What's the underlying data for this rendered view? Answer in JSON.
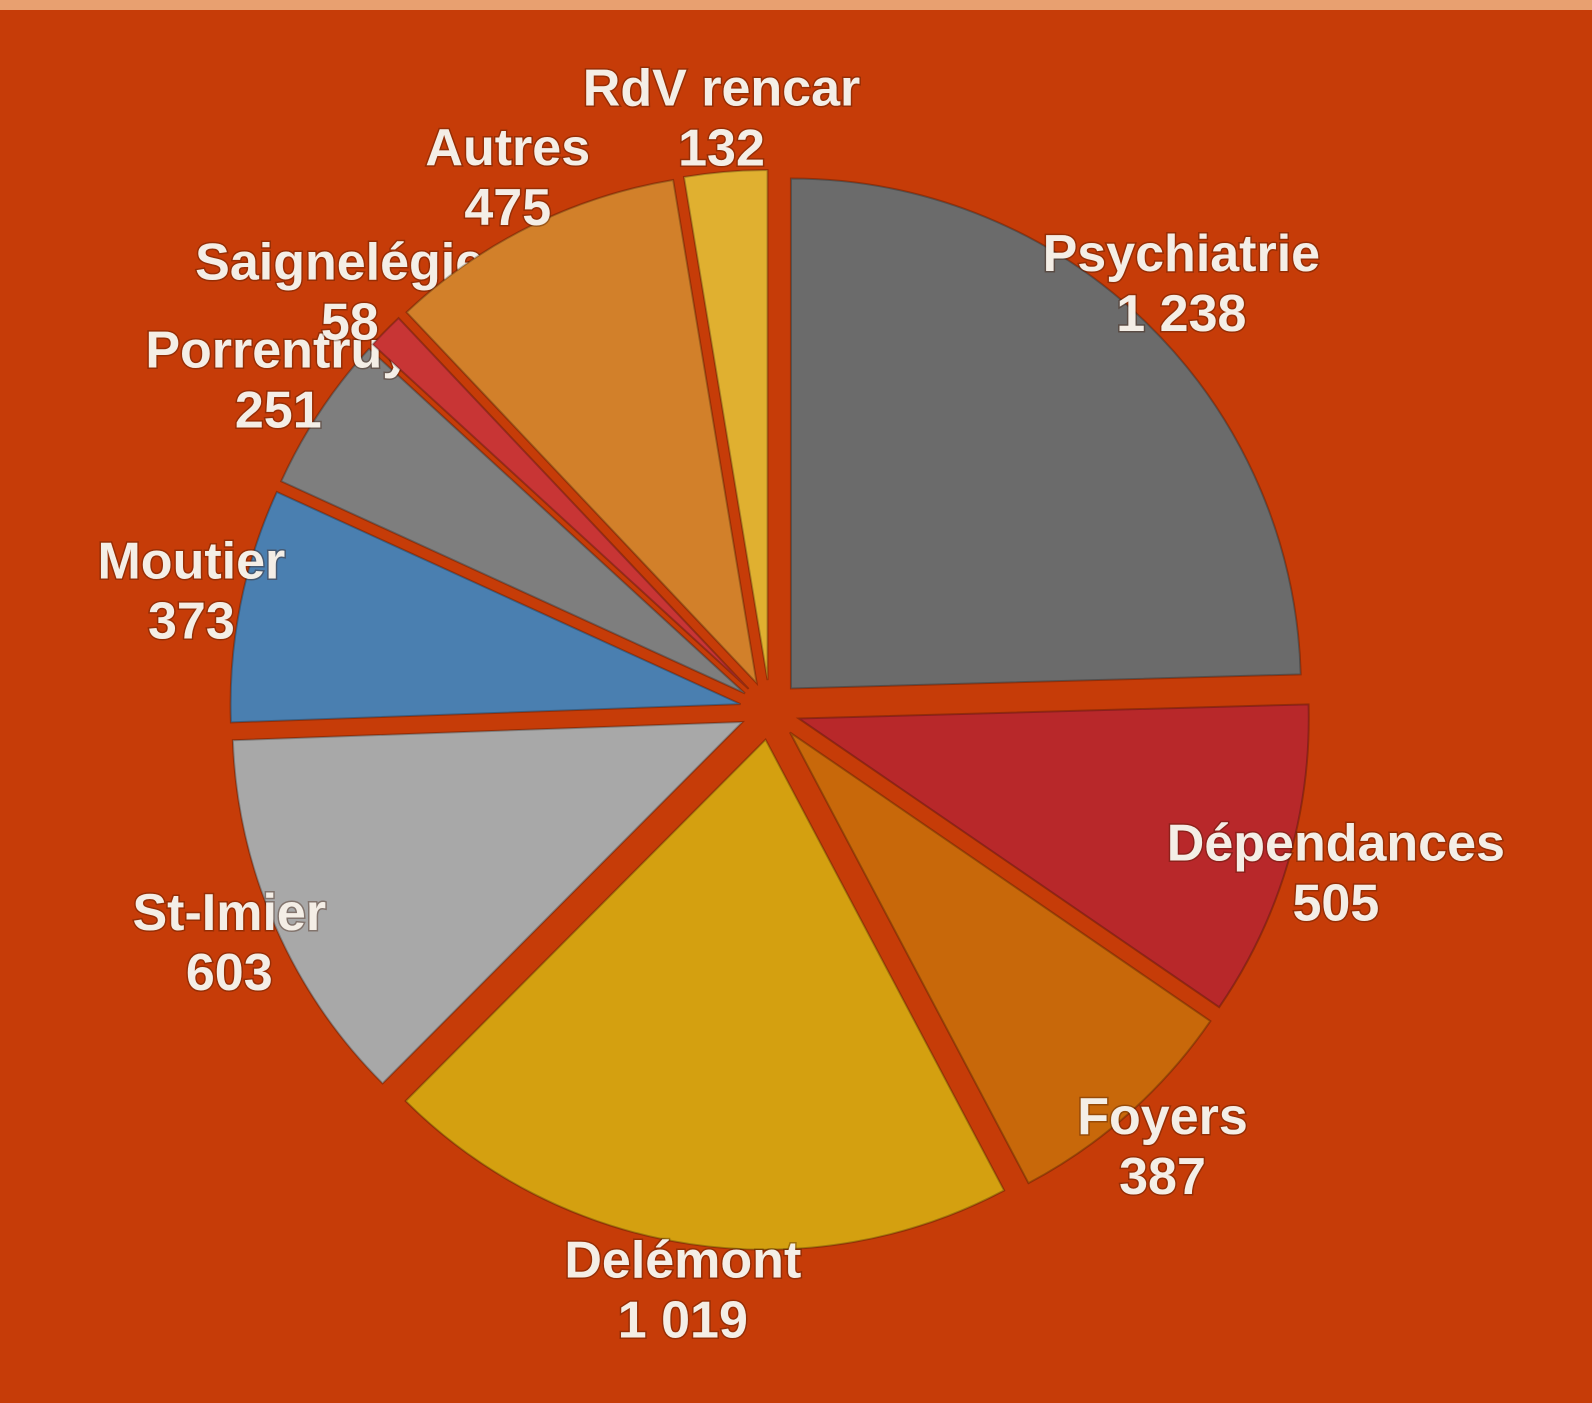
{
  "chart_data": {
    "type": "pie",
    "categories": [
      "Psychiatrie",
      "Dépendances",
      "Foyers",
      "Delémont",
      "St-Imier",
      "Moutier",
      "Porrentruy",
      "Saignelégier",
      "Autres",
      "RdV rencar"
    ],
    "values": [
      1238,
      505,
      387,
      1019,
      603,
      373,
      251,
      58,
      475,
      132
    ],
    "value_labels": [
      "1 238",
      "505",
      "387",
      "1 019",
      "603",
      "373",
      "251",
      "58",
      "475",
      "132"
    ],
    "colors": [
      "#6b6b6b",
      "#b8282a",
      "#c8680a",
      "#d4a010",
      "#a8a8a8",
      "#4a7fb0",
      "#7e7e7e",
      "#c83535",
      "#d2802a",
      "#e0b030"
    ]
  }
}
